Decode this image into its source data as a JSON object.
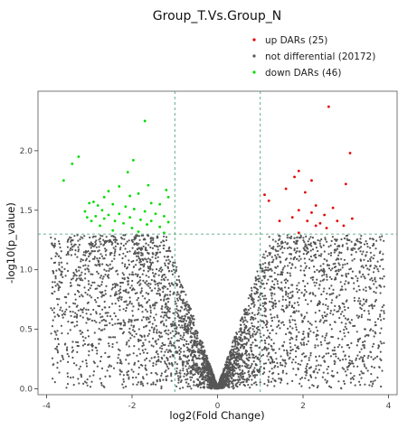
{
  "chart_data": {
    "type": "scatter",
    "title": "Group_T.Vs.Group_N",
    "xlabel": "log2(Fold Change)",
    "ylabel": "-log10(p_value)",
    "xlim": [
      -4.2,
      4.2
    ],
    "ylim": [
      -0.05,
      2.5
    ],
    "xticks": [
      -4,
      -2,
      0,
      2,
      4
    ],
    "xtick_labels": [
      "-4",
      "-2",
      "0",
      "2",
      "4"
    ],
    "yticks": [
      0.0,
      0.5,
      1.0,
      1.5,
      2.0
    ],
    "ytick_labels": [
      "0.0",
      "0.5",
      "1.0",
      "1.5",
      "2.0"
    ],
    "grid": false,
    "legend_position": "top-right",
    "thresholds": {
      "fold_change_x": [
        -1,
        1
      ],
      "p_value_y": 1.3
    },
    "series": [
      {
        "name": "up DARs (25)",
        "color": "#e60000",
        "points": [
          [
            2.6,
            2.37
          ],
          [
            3.1,
            1.98
          ],
          [
            1.9,
            1.83
          ],
          [
            1.8,
            1.78
          ],
          [
            2.2,
            1.75
          ],
          [
            3.0,
            1.72
          ],
          [
            1.6,
            1.68
          ],
          [
            1.1,
            1.63
          ],
          [
            2.05,
            1.65
          ],
          [
            1.2,
            1.58
          ],
          [
            2.3,
            1.54
          ],
          [
            2.7,
            1.52
          ],
          [
            1.9,
            1.5
          ],
          [
            2.2,
            1.48
          ],
          [
            2.5,
            1.46
          ],
          [
            1.75,
            1.44
          ],
          [
            3.15,
            1.43
          ],
          [
            1.45,
            1.41
          ],
          [
            2.1,
            1.41
          ],
          [
            2.8,
            1.41
          ],
          [
            2.4,
            1.39
          ],
          [
            2.3,
            1.37
          ],
          [
            2.95,
            1.37
          ],
          [
            2.55,
            1.35
          ],
          [
            1.9,
            1.31
          ]
        ]
      },
      {
        "name": "not differential (20172)",
        "color": "#555555",
        "points": []
      },
      {
        "name": "down DARs (46)",
        "color": "#00dd00",
        "points": [
          [
            -1.7,
            2.25
          ],
          [
            -3.25,
            1.95
          ],
          [
            -3.4,
            1.89
          ],
          [
            -1.97,
            1.92
          ],
          [
            -2.1,
            1.82
          ],
          [
            -3.6,
            1.75
          ],
          [
            -1.62,
            1.71
          ],
          [
            -2.3,
            1.7
          ],
          [
            -2.55,
            1.66
          ],
          [
            -1.2,
            1.67
          ],
          [
            -1.85,
            1.64
          ],
          [
            -2.05,
            1.62
          ],
          [
            -2.65,
            1.61
          ],
          [
            -1.15,
            1.61
          ],
          [
            -2.9,
            1.57
          ],
          [
            -3.0,
            1.56
          ],
          [
            -2.45,
            1.55
          ],
          [
            -2.8,
            1.54
          ],
          [
            -1.55,
            1.56
          ],
          [
            -2.15,
            1.53
          ],
          [
            -1.35,
            1.55
          ],
          [
            -2.7,
            1.5
          ],
          [
            -1.95,
            1.51
          ],
          [
            -3.1,
            1.49
          ],
          [
            -2.3,
            1.47
          ],
          [
            -1.7,
            1.49
          ],
          [
            -2.55,
            1.46
          ],
          [
            -1.45,
            1.47
          ],
          [
            -2.85,
            1.45
          ],
          [
            -1.25,
            1.45
          ],
          [
            -2.05,
            1.44
          ],
          [
            -3.05,
            1.44
          ],
          [
            -2.65,
            1.43
          ],
          [
            -1.8,
            1.42
          ],
          [
            -2.4,
            1.41
          ],
          [
            -1.55,
            1.41
          ],
          [
            -2.95,
            1.41
          ],
          [
            -1.15,
            1.4
          ],
          [
            -2.2,
            1.39
          ],
          [
            -1.65,
            1.38
          ],
          [
            -2.75,
            1.37
          ],
          [
            -1.35,
            1.36
          ],
          [
            -2.0,
            1.35
          ],
          [
            -2.45,
            1.33
          ],
          [
            -1.85,
            1.32
          ],
          [
            -1.25,
            1.31
          ]
        ]
      }
    ]
  }
}
